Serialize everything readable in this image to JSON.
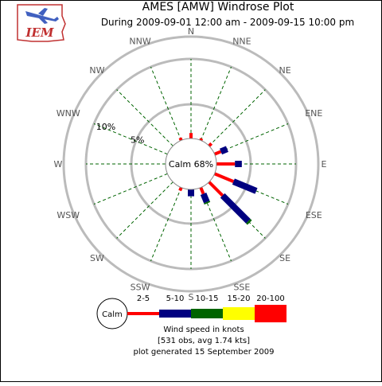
{
  "logo": {
    "text": "IEM"
  },
  "chart_data": {
    "type": "windrose",
    "title": "AMES [AMW] Windrose Plot",
    "subtitle": "During 2009-09-01 12:00 am - 2009-09-15 10:00 pm",
    "calm_label": "Calm 68%",
    "calm_percent": 68,
    "ring_labels": [
      {
        "label": "5%",
        "value": 5
      },
      {
        "label": "10%",
        "value": 10
      }
    ],
    "directions": [
      "N",
      "NNE",
      "NE",
      "ENE",
      "E",
      "ESE",
      "SE",
      "SSE",
      "S",
      "SSW",
      "SW",
      "WSW",
      "W",
      "WNW",
      "NW",
      "NNW"
    ],
    "speed_bins": [
      {
        "label": "2-5",
        "color": "#ff0000"
      },
      {
        "label": "5-10",
        "color": "#000080"
      },
      {
        "label": "10-15",
        "color": "#006400"
      },
      {
        "label": "15-20",
        "color": "#ffff00"
      },
      {
        "label": "20-100",
        "color": "#ff0000"
      }
    ],
    "values": [
      {
        "direction": "N",
        "cumulative": [
          0.8,
          0.8,
          0.8
        ]
      },
      {
        "direction": "NNE",
        "cumulative": [
          0.3,
          0.3,
          0.3
        ]
      },
      {
        "direction": "NE",
        "cumulative": [
          0.5,
          0.5,
          0.5
        ]
      },
      {
        "direction": "ENE",
        "cumulative": [
          1.0,
          2.0,
          2.0
        ]
      },
      {
        "direction": "E",
        "cumulative": [
          2.7,
          3.7,
          3.7
        ]
      },
      {
        "direction": "ESE",
        "cumulative": [
          3.0,
          6.6,
          6.6
        ]
      },
      {
        "direction": "SE",
        "cumulative": [
          2.8,
          8.1,
          8.4
        ]
      },
      {
        "direction": "SSE",
        "cumulative": [
          1.0,
          2.3,
          2.5
        ]
      },
      {
        "direction": "S",
        "cumulative": [
          0.0,
          1.0,
          1.0
        ]
      },
      {
        "direction": "SSW",
        "cumulative": [
          0.5,
          0.5,
          0.5
        ]
      },
      {
        "direction": "SW",
        "cumulative": [
          0.0,
          0.0,
          0.0
        ]
      },
      {
        "direction": "WSW",
        "cumulative": [
          0.0,
          0.0,
          0.0
        ]
      },
      {
        "direction": "W",
        "cumulative": [
          0.0,
          0.0,
          0.0
        ]
      },
      {
        "direction": "WNW",
        "cumulative": [
          0.0,
          0.0,
          0.0
        ]
      },
      {
        "direction": "NW",
        "cumulative": [
          0.0,
          0.0,
          0.0
        ]
      },
      {
        "direction": "NNW",
        "cumulative": [
          0.4,
          0.4,
          0.4
        ]
      }
    ],
    "legend": {
      "calm": "Calm",
      "caption": "Wind speed in knots",
      "obs": "[531 obs, avg 1.74 kts]",
      "generated": "plot generated 15 September 2009"
    }
  }
}
